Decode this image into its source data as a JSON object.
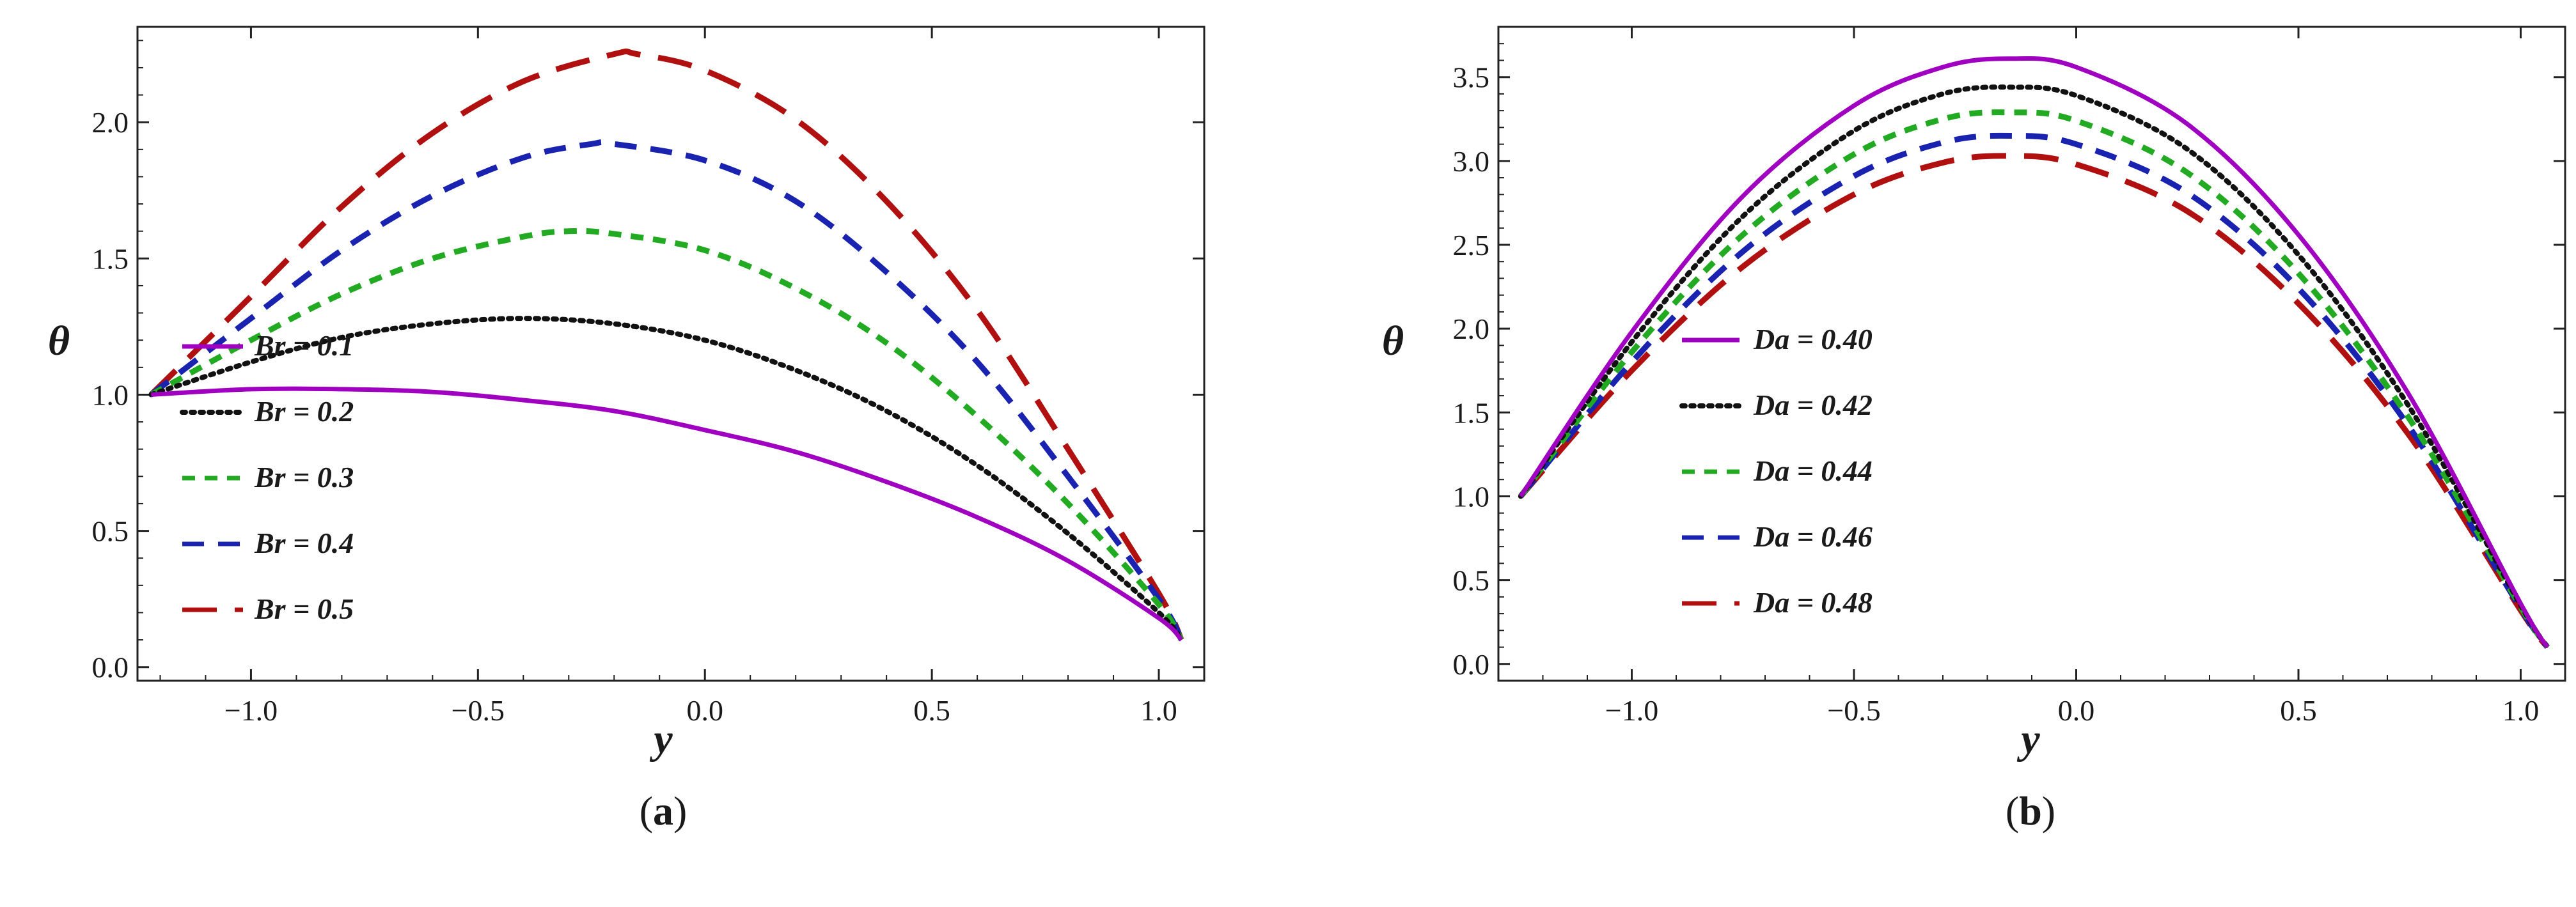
{
  "chart_data": [
    {
      "type": "line",
      "panel_label": "a",
      "xlabel": "y",
      "ylabel": "θ",
      "xlim": [
        -1.25,
        1.1
      ],
      "ylim": [
        -0.05,
        2.35
      ],
      "xticks": [
        -1.0,
        -0.5,
        0.0,
        0.5,
        1.0
      ],
      "xtick_labels": [
        "−1.0",
        "−0.5",
        "0.0",
        "0.5",
        "1.0"
      ],
      "yticks": [
        0.0,
        0.5,
        1.0,
        1.5,
        2.0
      ],
      "ytick_labels": [
        "0.0",
        "0.5",
        "1.0",
        "1.5",
        "2.0"
      ],
      "legend_position": "left",
      "series": [
        {
          "name": "Br = 0.1",
          "color": "#a000c0",
          "style": "solid",
          "x": [
            -1.22,
            -1.0,
            -0.8,
            -0.6,
            -0.4,
            -0.2,
            0.0,
            0.2,
            0.4,
            0.6,
            0.8,
            1.0,
            1.05
          ],
          "y": [
            1.0,
            1.02,
            1.02,
            1.01,
            0.98,
            0.94,
            0.87,
            0.79,
            0.68,
            0.55,
            0.39,
            0.18,
            0.1
          ]
        },
        {
          "name": "Br = 0.2",
          "color": "#111111",
          "style": "dotted",
          "x": [
            -1.22,
            -1.0,
            -0.8,
            -0.6,
            -0.4,
            -0.2,
            0.0,
            0.2,
            0.4,
            0.6,
            0.8,
            1.0,
            1.05
          ],
          "y": [
            1.0,
            1.12,
            1.21,
            1.26,
            1.28,
            1.26,
            1.2,
            1.09,
            0.94,
            0.74,
            0.49,
            0.2,
            0.1
          ]
        },
        {
          "name": "Br = 0.3",
          "color": "#22aa22",
          "style": "dashed-short",
          "x": [
            -1.22,
            -1.0,
            -0.8,
            -0.6,
            -0.4,
            -0.3,
            -0.2,
            0.0,
            0.2,
            0.4,
            0.6,
            0.8,
            1.0,
            1.05
          ],
          "y": [
            1.0,
            1.2,
            1.37,
            1.5,
            1.58,
            1.6,
            1.59,
            1.53,
            1.39,
            1.19,
            0.92,
            0.6,
            0.23,
            0.1
          ]
        },
        {
          "name": "Br = 0.4",
          "color": "#1a23b0",
          "style": "dashed",
          "x": [
            -1.22,
            -1.0,
            -0.8,
            -0.6,
            -0.4,
            -0.25,
            -0.2,
            0.0,
            0.2,
            0.4,
            0.6,
            0.8,
            1.0,
            1.05
          ],
          "y": [
            1.0,
            1.28,
            1.53,
            1.73,
            1.87,
            1.92,
            1.92,
            1.86,
            1.71,
            1.45,
            1.12,
            0.7,
            0.25,
            0.1
          ]
        },
        {
          "name": "Br = 0.5",
          "color": "#b01010",
          "style": "dashed-long",
          "x": [
            -1.22,
            -1.0,
            -0.8,
            -0.6,
            -0.4,
            -0.2,
            -0.15,
            0.0,
            0.2,
            0.4,
            0.6,
            0.8,
            1.0,
            1.05
          ],
          "y": [
            1.0,
            1.36,
            1.69,
            1.96,
            2.15,
            2.25,
            2.25,
            2.19,
            2.01,
            1.71,
            1.31,
            0.8,
            0.27,
            0.1
          ]
        }
      ]
    },
    {
      "type": "line",
      "panel_label": "b",
      "xlabel": "y",
      "ylabel": "θ",
      "xlim": [
        -1.3,
        1.1
      ],
      "ylim": [
        -0.1,
        3.8
      ],
      "xticks": [
        -1.0,
        -0.5,
        0.0,
        0.5,
        1.0
      ],
      "xtick_labels": [
        "−1.0",
        "−0.5",
        "0.0",
        "0.5",
        "1.0"
      ],
      "yticks": [
        0.0,
        0.5,
        1.0,
        1.5,
        2.0,
        2.5,
        3.0,
        3.5
      ],
      "ytick_labels": [
        "0.0",
        "0.5",
        "1.0",
        "1.5",
        "2.0",
        "2.5",
        "3.0",
        "3.5"
      ],
      "legend_position": "left",
      "series": [
        {
          "name": "Da = 0.40",
          "color": "#a000c0",
          "style": "solid",
          "x": [
            -1.25,
            -1.0,
            -0.75,
            -0.5,
            -0.3,
            -0.15,
            0.0,
            0.25,
            0.5,
            0.75,
            1.0,
            1.06
          ],
          "y": [
            1.0,
            1.98,
            2.79,
            3.33,
            3.56,
            3.61,
            3.56,
            3.22,
            2.56,
            1.6,
            0.36,
            0.1
          ]
        },
        {
          "name": "Da = 0.42",
          "color": "#111111",
          "style": "dotted",
          "x": [
            -1.25,
            -1.0,
            -0.75,
            -0.5,
            -0.3,
            -0.15,
            0.0,
            0.25,
            0.5,
            0.75,
            1.0,
            1.06
          ],
          "y": [
            1.0,
            1.92,
            2.67,
            3.18,
            3.4,
            3.44,
            3.39,
            3.07,
            2.44,
            1.53,
            0.35,
            0.1
          ]
        },
        {
          "name": "Da = 0.44",
          "color": "#22aa22",
          "style": "dashed-short",
          "x": [
            -1.25,
            -1.0,
            -0.75,
            -0.5,
            -0.3,
            -0.15,
            0.0,
            0.25,
            0.5,
            0.75,
            1.0,
            1.06
          ],
          "y": [
            1.0,
            1.86,
            2.56,
            3.04,
            3.25,
            3.29,
            3.24,
            2.93,
            2.33,
            1.46,
            0.34,
            0.1
          ]
        },
        {
          "name": "Da = 0.46",
          "color": "#1a23b0",
          "style": "dashed",
          "x": [
            -1.25,
            -1.0,
            -0.75,
            -0.5,
            -0.3,
            -0.15,
            0.0,
            0.25,
            0.5,
            0.75,
            1.0,
            1.06
          ],
          "y": [
            1.0,
            1.8,
            2.46,
            2.91,
            3.11,
            3.15,
            3.1,
            2.81,
            2.24,
            1.41,
            0.33,
            0.1
          ]
        },
        {
          "name": "Da = 0.48",
          "color": "#b01010",
          "style": "dashed-long",
          "x": [
            -1.25,
            -1.0,
            -0.75,
            -0.5,
            -0.3,
            -0.15,
            0.0,
            0.25,
            0.5,
            0.75,
            1.0,
            1.06
          ],
          "y": [
            1.0,
            1.75,
            2.37,
            2.8,
            2.99,
            3.03,
            2.98,
            2.7,
            2.15,
            1.36,
            0.32,
            0.1
          ]
        }
      ]
    }
  ]
}
